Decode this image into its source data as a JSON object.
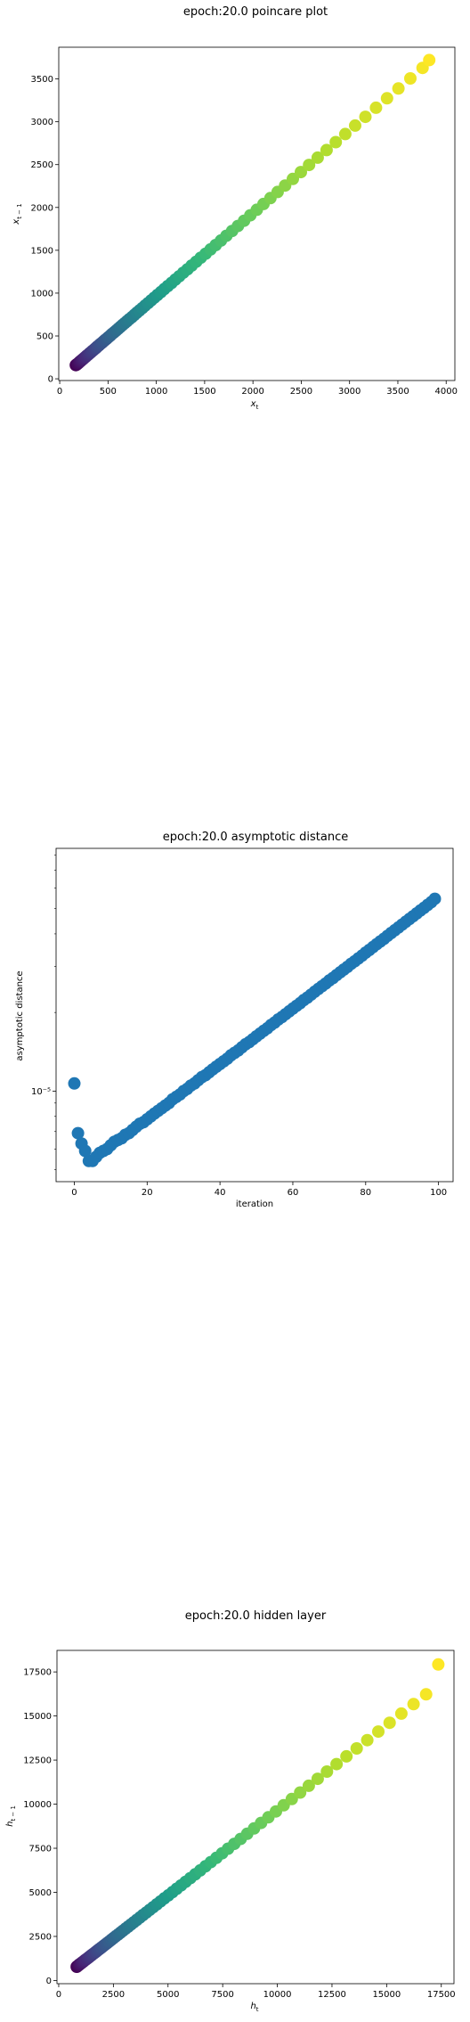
{
  "chart_data": [
    {
      "type": "scatter",
      "title": "epoch:20.0 poincare plot",
      "xlabel": "x",
      "xlabel_sub": "t",
      "ylabel": "x",
      "ylabel_sub": "t − 1",
      "xlim": [
        -10,
        4090
      ],
      "ylim": [
        -20,
        3870
      ],
      "xticks": [
        0,
        500,
        1000,
        1500,
        2000,
        2500,
        3000,
        3500,
        4000
      ],
      "xtick_labels": [
        "0",
        "500",
        "1000",
        "1500",
        "2000",
        "2500",
        "3000",
        "3500",
        "4000"
      ],
      "yticks": [
        0,
        500,
        1000,
        1500,
        2000,
        2500,
        3000,
        3500
      ],
      "ytick_labels": [
        "0",
        "500",
        "1000",
        "1500",
        "2000",
        "2500",
        "3000",
        "3500"
      ],
      "colormap": "viridis",
      "grid": false,
      "series": [
        {
          "x": [
            167,
            176,
            185,
            195,
            205,
            215,
            225,
            236,
            247,
            258,
            270,
            281,
            294,
            306,
            319,
            332,
            346,
            360,
            375,
            389,
            405,
            420,
            437,
            453,
            470,
            488,
            506,
            525,
            544,
            564,
            584,
            605,
            627,
            649,
            672,
            696,
            720,
            746,
            772,
            798,
            826,
            855,
            884,
            915,
            946,
            979,
            1012,
            1047,
            1082,
            1119,
            1157,
            1196,
            1237,
            1278,
            1322,
            1366,
            1413,
            1460,
            1510,
            1561,
            1614,
            1669,
            1725,
            1784,
            1845,
            1908,
            1973,
            2040,
            2109,
            2181,
            2256,
            2333,
            2413,
            2496,
            2581,
            2670,
            2762,
            2857,
            2956,
            3058,
            3164,
            3274,
            3388,
            3506,
            3629,
            3756,
            3825
          ],
          "y": [
            160,
            167,
            176,
            185,
            195,
            205,
            215,
            225,
            236,
            247,
            258,
            270,
            281,
            294,
            306,
            319,
            332,
            346,
            360,
            375,
            389,
            405,
            420,
            437,
            453,
            470,
            488,
            506,
            525,
            544,
            564,
            584,
            605,
            627,
            649,
            672,
            696,
            720,
            746,
            772,
            798,
            826,
            855,
            884,
            915,
            946,
            979,
            1012,
            1047,
            1082,
            1119,
            1157,
            1196,
            1237,
            1278,
            1322,
            1366,
            1413,
            1460,
            1510,
            1561,
            1614,
            1669,
            1725,
            1784,
            1845,
            1908,
            1973,
            2040,
            2109,
            2181,
            2256,
            2333,
            2413,
            2496,
            2581,
            2670,
            2762,
            2857,
            2956,
            3058,
            3164,
            3274,
            3388,
            3506,
            3629,
            3720
          ]
        }
      ]
    },
    {
      "type": "scatter",
      "title": "epoch:20.0 asymptotic distance",
      "xlabel": "iteration",
      "ylabel": "asymptotic distance",
      "xlim": [
        -5,
        104
      ],
      "yscale": "log",
      "ylim": [
        4.5e-06,
        8.5e-05
      ],
      "xticks": [
        0,
        20,
        40,
        60,
        80,
        100
      ],
      "xtick_labels": [
        "0",
        "20",
        "40",
        "60",
        "80",
        "100"
      ],
      "yticks": [
        1e-05
      ],
      "ytick_labels": [
        "10⁻⁵"
      ],
      "color": "#1f77b4",
      "grid": false,
      "series": [
        {
          "x": [
            0,
            1,
            2,
            3,
            4,
            5,
            6,
            7,
            8,
            9,
            10,
            11,
            12,
            13,
            14,
            15,
            16,
            17,
            18,
            19,
            20,
            21,
            22,
            23,
            24,
            25,
            26,
            27,
            28,
            29,
            30,
            31,
            32,
            33,
            34,
            35,
            36,
            37,
            38,
            39,
            40,
            41,
            42,
            43,
            44,
            45,
            46,
            47,
            48,
            49,
            50,
            51,
            52,
            53,
            54,
            55,
            56,
            57,
            58,
            59,
            60,
            61,
            62,
            63,
            64,
            65,
            66,
            67,
            68,
            69,
            70,
            71,
            72,
            73,
            74,
            75,
            76,
            77,
            78,
            79,
            80,
            81,
            82,
            83,
            84,
            85,
            86,
            87,
            88,
            89,
            90,
            91,
            92,
            93,
            94,
            95,
            96,
            97,
            98,
            99
          ],
          "y": [
            1.07e-05,
            6.9e-06,
            6.3e-06,
            5.9e-06,
            5.4e-06,
            5.4e-06,
            5.6e-06,
            5.8e-06,
            5.9e-06,
            6e-06,
            6.2e-06,
            6.4e-06,
            6.5e-06,
            6.6e-06,
            6.8e-06,
            6.9e-06,
            7.1e-06,
            7.3e-06,
            7.5e-06,
            7.6e-06,
            7.8e-06,
            8e-06,
            8.2e-06,
            8.4e-06,
            8.6e-06,
            8.8e-06,
            9e-06,
            9.3e-06,
            9.5e-06,
            9.7e-06,
            1e-05,
            1.02e-05,
            1.05e-05,
            1.07e-05,
            1.1e-05,
            1.13e-05,
            1.15e-05,
            1.18e-05,
            1.21e-05,
            1.24e-05,
            1.27e-05,
            1.3e-05,
            1.33e-05,
            1.37e-05,
            1.4e-05,
            1.43e-05,
            1.47e-05,
            1.51e-05,
            1.54e-05,
            1.58e-05,
            1.62e-05,
            1.66e-05,
            1.7e-05,
            1.74e-05,
            1.79e-05,
            1.83e-05,
            1.88e-05,
            1.92e-05,
            1.97e-05,
            2.02e-05,
            2.07e-05,
            2.12e-05,
            2.17e-05,
            2.23e-05,
            2.28e-05,
            2.34e-05,
            2.4e-05,
            2.46e-05,
            2.52e-05,
            2.58e-05,
            2.65e-05,
            2.71e-05,
            2.78e-05,
            2.85e-05,
            2.92e-05,
            2.99e-05,
            3.07e-05,
            3.14e-05,
            3.22e-05,
            3.3e-05,
            3.39e-05,
            3.47e-05,
            3.56e-05,
            3.65e-05,
            3.74e-05,
            3.83e-05,
            3.93e-05,
            4.03e-05,
            4.13e-05,
            4.23e-05,
            4.34e-05,
            4.45e-05,
            4.56e-05,
            4.67e-05,
            4.79e-05,
            4.91e-05,
            5.03e-05,
            5.16e-05,
            5.29e-05,
            5.45e-05
          ]
        }
      ]
    },
    {
      "type": "scatter",
      "title": "epoch:20.0 hidden layer",
      "xlabel": "h",
      "xlabel_sub": "t",
      "ylabel": "h",
      "ylabel_sub": "t − 1",
      "xlim": [
        -80,
        18080
      ],
      "ylim": [
        -180,
        18720
      ],
      "xticks": [
        0,
        2500,
        5000,
        7500,
        10000,
        12500,
        15000,
        17500
      ],
      "xtick_labels": [
        "0",
        "2500",
        "5000",
        "7500",
        "10000",
        "12500",
        "15000",
        "17500"
      ],
      "yticks": [
        0,
        2500,
        5000,
        7500,
        10000,
        12500,
        15000,
        17500
      ],
      "ytick_labels": [
        "0",
        "2500",
        "5000",
        "7500",
        "10000",
        "12500",
        "15000",
        "17500"
      ],
      "colormap": "viridis",
      "grid": false,
      "series": [
        {
          "x": [
            822,
            862,
            904,
            947,
            993,
            1040,
            1090,
            1142,
            1196,
            1252,
            1311,
            1373,
            1436,
            1502,
            1570,
            1641,
            1714,
            1790,
            1869,
            1950,
            2034,
            2121,
            2212,
            2305,
            2402,
            2502,
            2605,
            2712,
            2822,
            2937,
            3055,
            3177,
            3304,
            3434,
            3570,
            3710,
            3854,
            4004,
            4158,
            4318,
            4483,
            4654,
            4830,
            5012,
            5201,
            5396,
            5597,
            5805,
            6021,
            6243,
            6473,
            6711,
            6957,
            7212,
            7475,
            7747,
            8029,
            8321,
            8622,
            8934,
            9256,
            9590,
            9935,
            10292,
            10662,
            11044,
            11439,
            11848,
            12271,
            12709,
            13162,
            13631,
            14116,
            14618,
            15137,
            15674,
            16230,
            16805,
            17365
          ],
          "y": [
            780,
            822,
            862,
            904,
            947,
            993,
            1040,
            1090,
            1142,
            1196,
            1252,
            1311,
            1373,
            1436,
            1502,
            1570,
            1641,
            1714,
            1790,
            1869,
            1950,
            2034,
            2121,
            2212,
            2305,
            2402,
            2502,
            2605,
            2712,
            2822,
            2937,
            3055,
            3177,
            3304,
            3434,
            3570,
            3710,
            3854,
            4004,
            4158,
            4318,
            4483,
            4654,
            4830,
            5012,
            5201,
            5396,
            5597,
            5805,
            6021,
            6243,
            6473,
            6711,
            6957,
            7212,
            7475,
            7747,
            8029,
            8321,
            8622,
            8934,
            9256,
            9590,
            9935,
            10292,
            10662,
            11044,
            11439,
            11848,
            12271,
            12709,
            13162,
            13631,
            14116,
            14618,
            15137,
            15674,
            16230,
            17920
          ]
        }
      ]
    }
  ]
}
